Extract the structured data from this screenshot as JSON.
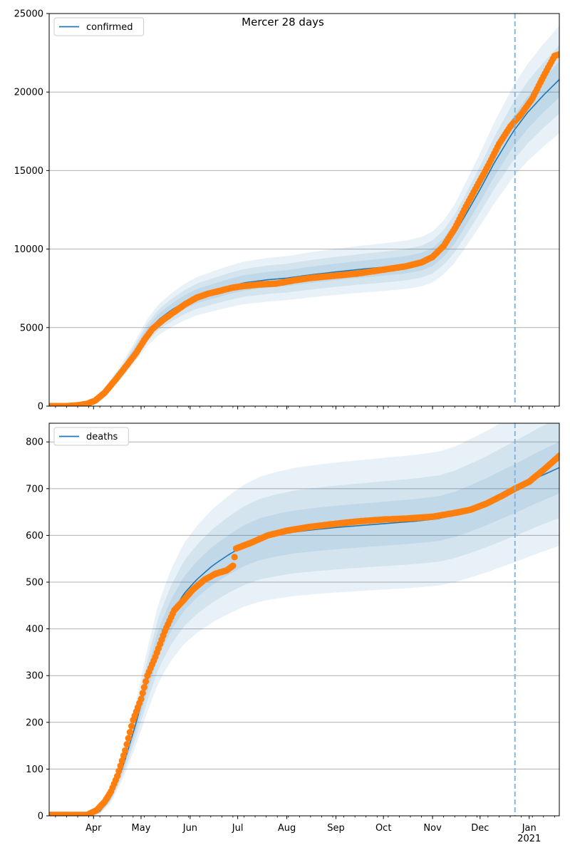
{
  "figure": {
    "title": "Mercer 28 days"
  },
  "chart_data": [
    {
      "type": "line",
      "title": "Mercer 28 days",
      "xlabel": "",
      "ylabel": "",
      "ylim": [
        0,
        25000
      ],
      "yticks": [
        0,
        5000,
        10000,
        15000,
        20000,
        25000
      ],
      "ytick_labels": [
        "0",
        "5000",
        "10000",
        "15000",
        "20000",
        "25000"
      ],
      "xlim": [
        "2020-03-04",
        "2021-01-20"
      ],
      "xtick_labels": [],
      "grid": "horizontal",
      "legend": "top-left",
      "forecast_start": "2020-12-23",
      "series": [
        {
          "name": "confirmed",
          "kind": "model-line",
          "color": "#1f77b4",
          "points": [
            [
              "2020-03-04",
              0
            ],
            [
              "2020-03-20",
              30
            ],
            [
              "2020-03-25",
              80
            ],
            [
              "2020-03-30",
              200
            ],
            [
              "2020-04-05",
              600
            ],
            [
              "2020-04-12",
              1400
            ],
            [
              "2020-04-20",
              2400
            ],
            [
              "2020-04-28",
              3600
            ],
            [
              "2020-05-05",
              4700
            ],
            [
              "2020-05-12",
              5500
            ],
            [
              "2020-05-20",
              6100
            ],
            [
              "2020-05-28",
              6600
            ],
            [
              "2020-06-05",
              7000
            ],
            [
              "2020-06-15",
              7300
            ],
            [
              "2020-06-25",
              7600
            ],
            [
              "2020-07-05",
              7850
            ],
            [
              "2020-07-20",
              8050
            ],
            [
              "2020-08-01",
              8150
            ],
            [
              "2020-08-15",
              8350
            ],
            [
              "2020-09-01",
              8550
            ],
            [
              "2020-09-15",
              8700
            ],
            [
              "2020-10-01",
              8850
            ],
            [
              "2020-10-15",
              9000
            ],
            [
              "2020-10-25",
              9200
            ],
            [
              "2020-11-01",
              9500
            ],
            [
              "2020-11-08",
              10100
            ],
            [
              "2020-11-15",
              11000
            ],
            [
              "2020-11-22",
              12200
            ],
            [
              "2020-12-01",
              13800
            ],
            [
              "2020-12-10",
              15500
            ],
            [
              "2020-12-22",
              17500
            ],
            [
              "2020-12-31",
              18700
            ],
            [
              "2021-01-10",
              19800
            ],
            [
              "2021-01-20",
              20800
            ]
          ]
        },
        {
          "name": "",
          "kind": "observed",
          "color": "#ff7f0e",
          "points": [
            [
              "2020-03-04",
              0
            ],
            [
              "2020-03-15",
              0
            ],
            [
              "2020-03-22",
              50
            ],
            [
              "2020-03-28",
              150
            ],
            [
              "2020-04-02",
              350
            ],
            [
              "2020-04-08",
              850
            ],
            [
              "2020-04-15",
              1700
            ],
            [
              "2020-04-22",
              2600
            ],
            [
              "2020-04-28",
              3400
            ],
            [
              "2020-05-03",
              4200
            ],
            [
              "2020-05-08",
              4900
            ],
            [
              "2020-05-15",
              5500
            ],
            [
              "2020-05-22",
              6000
            ],
            [
              "2020-05-29",
              6500
            ],
            [
              "2020-06-05",
              6900
            ],
            [
              "2020-06-12",
              7150
            ],
            [
              "2020-06-20",
              7350
            ],
            [
              "2020-06-28",
              7550
            ],
            [
              "2020-07-05",
              7650
            ],
            [
              "2020-07-15",
              7750
            ],
            [
              "2020-07-25",
              7800
            ],
            [
              "2020-08-05",
              8000
            ],
            [
              "2020-08-15",
              8150
            ],
            [
              "2020-08-25",
              8250
            ],
            [
              "2020-09-05",
              8350
            ],
            [
              "2020-09-15",
              8450
            ],
            [
              "2020-09-25",
              8600
            ],
            [
              "2020-10-05",
              8750
            ],
            [
              "2020-10-15",
              8900
            ],
            [
              "2020-10-25",
              9150
            ],
            [
              "2020-11-01",
              9500
            ],
            [
              "2020-11-08",
              10200
            ],
            [
              "2020-11-15",
              11300
            ],
            [
              "2020-11-22",
              12700
            ],
            [
              "2020-11-29",
              14000
            ],
            [
              "2020-12-06",
              15300
            ],
            [
              "2020-12-13",
              16700
            ],
            [
              "2020-12-20",
              17800
            ],
            [
              "2020-12-27",
              18600
            ],
            [
              "2021-01-03",
              19600
            ],
            [
              "2021-01-10",
              21000
            ],
            [
              "2021-01-17",
              22300
            ],
            [
              "2021-01-20",
              22400
            ]
          ]
        }
      ],
      "bands": [
        {
          "color": "#1f77b4",
          "opacity": 0.1,
          "frac": 0.16
        },
        {
          "color": "#1f77b4",
          "opacity": 0.1,
          "frac": 0.1
        },
        {
          "color": "#1f77b4",
          "opacity": 0.1,
          "frac": 0.05
        }
      ]
    },
    {
      "type": "line",
      "title": "",
      "xlabel": "",
      "ylabel": "",
      "ylim": [
        0,
        840
      ],
      "yticks": [
        0,
        100,
        200,
        300,
        400,
        500,
        600,
        700,
        800
      ],
      "ytick_labels": [
        "0",
        "100",
        "200",
        "300",
        "400",
        "500",
        "600",
        "700",
        "800"
      ],
      "xlim": [
        "2020-03-04",
        "2021-01-20"
      ],
      "xticks": [
        "2020-04-01",
        "2020-05-01",
        "2020-06-01",
        "2020-07-01",
        "2020-08-01",
        "2020-09-01",
        "2020-10-01",
        "2020-11-01",
        "2020-12-01",
        "2021-01-01"
      ],
      "xtick_labels": [
        "Apr",
        "May",
        "Jun",
        "Jul",
        "Aug",
        "Sep",
        "Oct",
        "Nov",
        "Dec",
        "Jan\n2021"
      ],
      "grid": "horizontal",
      "legend": "top-left",
      "forecast_start": "2020-12-23",
      "series": [
        {
          "name": "deaths",
          "kind": "model-line",
          "color": "#1f77b4",
          "points": [
            [
              "2020-03-04",
              0
            ],
            [
              "2020-03-28",
              2
            ],
            [
              "2020-04-05",
              10
            ],
            [
              "2020-04-12",
              40
            ],
            [
              "2020-04-20",
              110
            ],
            [
              "2020-04-28",
              200
            ],
            [
              "2020-05-05",
              290
            ],
            [
              "2020-05-12",
              370
            ],
            [
              "2020-05-20",
              430
            ],
            [
              "2020-05-28",
              475
            ],
            [
              "2020-06-05",
              505
            ],
            [
              "2020-06-15",
              535
            ],
            [
              "2020-06-25",
              558
            ],
            [
              "2020-07-05",
              578
            ],
            [
              "2020-07-15",
              592
            ],
            [
              "2020-07-25",
              600
            ],
            [
              "2020-08-05",
              607
            ],
            [
              "2020-08-20",
              613
            ],
            [
              "2020-09-05",
              618
            ],
            [
              "2020-09-20",
              622
            ],
            [
              "2020-10-05",
              626
            ],
            [
              "2020-10-20",
              630
            ],
            [
              "2020-11-05",
              636
            ],
            [
              "2020-11-15",
              645
            ],
            [
              "2020-11-25",
              658
            ],
            [
              "2020-12-05",
              672
            ],
            [
              "2020-12-15",
              688
            ],
            [
              "2020-12-23",
              700
            ],
            [
              "2021-01-05",
              722
            ],
            [
              "2021-01-20",
              745
            ]
          ]
        },
        {
          "name": "",
          "kind": "observed",
          "color": "#ff7f0e",
          "points": [
            [
              "2020-03-04",
              2
            ],
            [
              "2020-03-28",
              2
            ],
            [
              "2020-04-03",
              12
            ],
            [
              "2020-04-08",
              30
            ],
            [
              "2020-04-12",
              52
            ],
            [
              "2020-04-16",
              85
            ],
            [
              "2020-04-21",
              140
            ],
            [
              "2020-04-26",
              205
            ],
            [
              "2020-05-01",
              250
            ],
            [
              "2020-05-05",
              300
            ],
            [
              "2020-05-10",
              340
            ],
            [
              "2020-05-16",
              395
            ],
            [
              "2020-05-22",
              440
            ],
            [
              "2020-05-28",
              462
            ],
            [
              "2020-06-03",
              485
            ],
            [
              "2020-06-10",
              505
            ],
            [
              "2020-06-17",
              518
            ],
            [
              "2020-06-24",
              525
            ],
            [
              "2020-06-28",
              535
            ],
            [
              "2020-06-30",
              572
            ],
            [
              "2020-07-10",
              585
            ],
            [
              "2020-07-20",
              600
            ],
            [
              "2020-08-01",
              610
            ],
            [
              "2020-08-15",
              618
            ],
            [
              "2020-09-01",
              625
            ],
            [
              "2020-09-15",
              630
            ],
            [
              "2020-10-01",
              634
            ],
            [
              "2020-10-15",
              636
            ],
            [
              "2020-11-01",
              640
            ],
            [
              "2020-11-15",
              648
            ],
            [
              "2020-11-25",
              655
            ],
            [
              "2020-12-05",
              668
            ],
            [
              "2020-12-15",
              685
            ],
            [
              "2020-12-23",
              700
            ],
            [
              "2021-01-01",
              715
            ],
            [
              "2021-01-10",
              740
            ],
            [
              "2021-01-20",
              770
            ]
          ]
        }
      ],
      "bands": [
        {
          "color": "#1f77b4",
          "opacity": 0.1,
          "frac": 0.22
        },
        {
          "color": "#1f77b4",
          "opacity": 0.1,
          "frac": 0.14
        },
        {
          "color": "#1f77b4",
          "opacity": 0.1,
          "frac": 0.07
        }
      ]
    }
  ]
}
